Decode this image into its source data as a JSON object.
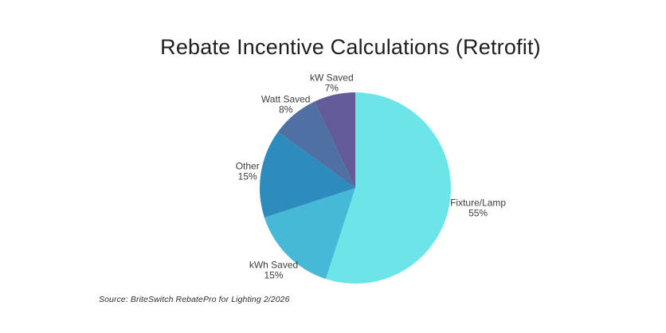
{
  "chart_data": {
    "type": "pie",
    "title": "Rebate Incentive Calculations (Retrofit)",
    "source": "Source: BriteSwitch RebatePro for Lighting 2/2026",
    "start_angle_deg": 0,
    "direction": "clockwise",
    "labels_position": "outside",
    "legend": "none",
    "background_color": "#ffffff",
    "title_color": "#1f1f1f",
    "label_color": "#3d3d3d",
    "slices": [
      {
        "label": "Fixture/Lamp",
        "pct": 55,
        "color": "#6CE5E8",
        "label_radius": 156
      },
      {
        "label": "kWh Saved",
        "pct": 15,
        "color": "#46B8D8",
        "label_radius": 145
      },
      {
        "label": "Other",
        "pct": 15,
        "color": "#2E8BBD",
        "label_radius": 137
      },
      {
        "label": "Watt Saved",
        "pct": 8,
        "color": "#506FA2",
        "label_radius": 137
      },
      {
        "label": "kW Saved",
        "pct": 7,
        "color": "#615C99",
        "label_radius": 136
      }
    ]
  }
}
